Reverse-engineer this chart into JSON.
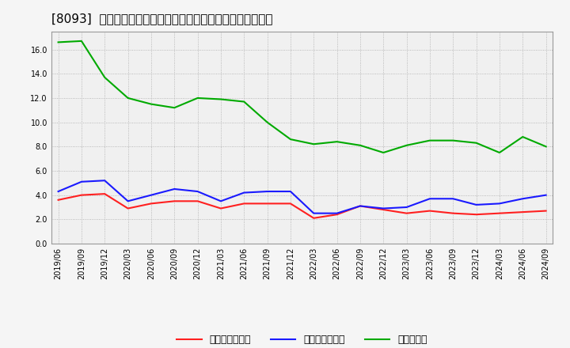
{
  "title": "[8093]  売上債権回転率、買入債務回転率、在庫回転率の推移",
  "x_labels": [
    "2019/06",
    "2019/09",
    "2019/12",
    "2020/03",
    "2020/06",
    "2020/09",
    "2020/12",
    "2021/03",
    "2021/06",
    "2021/09",
    "2021/12",
    "2022/03",
    "2022/06",
    "2022/09",
    "2022/12",
    "2023/03",
    "2023/06",
    "2023/09",
    "2023/12",
    "2024/03",
    "2024/06",
    "2024/09"
  ],
  "receivables_turnover": [
    3.6,
    4.0,
    4.1,
    2.9,
    3.3,
    3.5,
    3.5,
    2.9,
    3.3,
    3.3,
    3.3,
    2.1,
    2.4,
    3.1,
    2.8,
    2.5,
    2.7,
    2.5,
    2.4,
    2.5,
    2.6,
    2.7
  ],
  "payables_turnover": [
    4.3,
    5.1,
    5.2,
    3.5,
    4.0,
    4.5,
    4.3,
    3.5,
    4.2,
    4.3,
    4.3,
    2.5,
    2.5,
    3.1,
    2.9,
    3.0,
    3.7,
    3.7,
    3.2,
    3.3,
    3.7,
    4.0
  ],
  "inventory_turnover": [
    16.6,
    16.7,
    13.7,
    12.0,
    11.5,
    11.2,
    12.0,
    11.9,
    11.7,
    10.0,
    8.6,
    8.2,
    8.4,
    8.1,
    7.5,
    8.1,
    8.5,
    8.5,
    8.3,
    7.5,
    8.8,
    8.0
  ],
  "receivables_color": "#ff2020",
  "payables_color": "#1a1aff",
  "inventory_color": "#00aa00",
  "background_color": "#f5f5f5",
  "plot_bg_color": "#f0f0f0",
  "ylim": [
    0.0,
    17.5
  ],
  "yticks": [
    0.0,
    2.0,
    4.0,
    6.0,
    8.0,
    10.0,
    12.0,
    14.0,
    16.0
  ],
  "legend_labels": [
    "売上債権回転率",
    "買入債務回転率",
    "在庫回転率"
  ],
  "title_fontsize": 11,
  "tick_fontsize": 7,
  "legend_fontsize": 9,
  "line_width": 1.5
}
